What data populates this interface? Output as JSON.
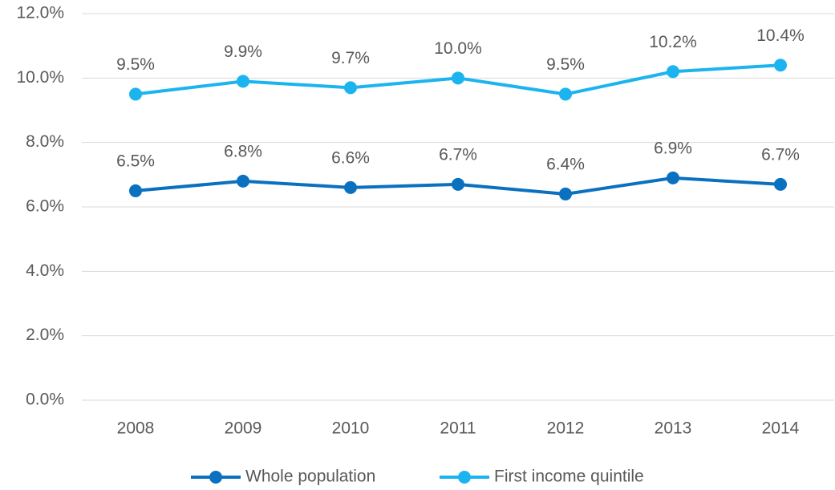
{
  "chart_data": {
    "type": "line",
    "categories": [
      "2008",
      "2009",
      "2010",
      "2011",
      "2012",
      "2013",
      "2014"
    ],
    "series": [
      {
        "name": "Whole population",
        "color": "#0a70c0",
        "values": [
          6.5,
          6.8,
          6.6,
          6.7,
          6.4,
          6.9,
          6.7
        ],
        "value_labels": [
          "6.5%",
          "6.8%",
          "6.6%",
          "6.7%",
          "6.4%",
          "6.9%",
          "6.7%"
        ]
      },
      {
        "name": "First income quintile",
        "color": "#1cb4ee",
        "values": [
          9.5,
          9.9,
          9.7,
          10.0,
          9.5,
          10.2,
          10.4
        ],
        "value_labels": [
          "9.5%",
          "9.9%",
          "9.7%",
          "10.0%",
          "9.5%",
          "10.2%",
          "10.4%"
        ]
      }
    ],
    "ylim": [
      0,
      12
    ],
    "yticks": [
      {
        "value": 0,
        "label": "0.0%"
      },
      {
        "value": 2,
        "label": "2.0%"
      },
      {
        "value": 4,
        "label": "4.0%"
      },
      {
        "value": 6,
        "label": "6.0%"
      },
      {
        "value": 8,
        "label": "8.0%"
      },
      {
        "value": 10,
        "label": "10.0%"
      },
      {
        "value": 12,
        "label": "12.0%"
      }
    ],
    "grid": true,
    "legend": "bottom"
  }
}
